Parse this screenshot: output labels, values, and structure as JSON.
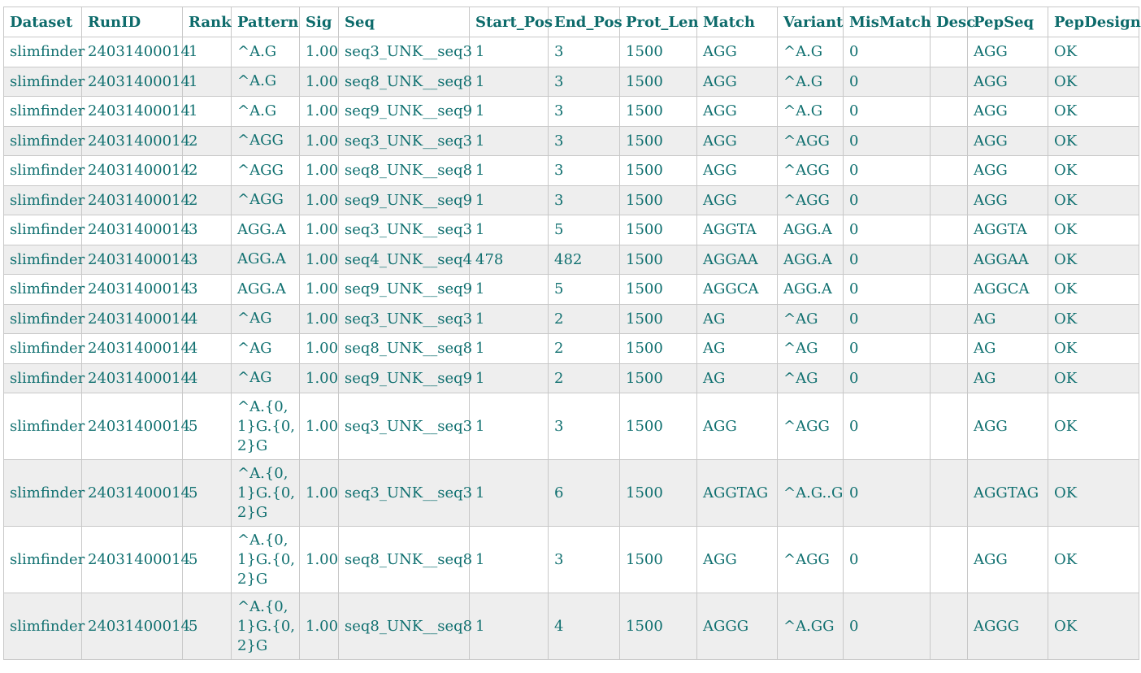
{
  "table": {
    "headers": [
      "Dataset",
      "RunID",
      "Rank",
      "Pattern",
      "Sig",
      "Seq",
      "Start_Pos",
      "End_Pos",
      "Prot_Len",
      "Match",
      "Variant",
      "MisMatch",
      "Desc",
      "PepSeq",
      "PepDesign"
    ],
    "rows": [
      [
        "slimfinder",
        "24031400014",
        "1",
        "^A.G",
        "1.00",
        "seq3_UNK__seq3",
        "1",
        "3",
        "1500",
        "AGG",
        "^A.G",
        "0",
        "",
        "AGG",
        "OK"
      ],
      [
        "slimfinder",
        "24031400014",
        "1",
        "^A.G",
        "1.00",
        "seq8_UNK__seq8",
        "1",
        "3",
        "1500",
        "AGG",
        "^A.G",
        "0",
        "",
        "AGG",
        "OK"
      ],
      [
        "slimfinder",
        "24031400014",
        "1",
        "^A.G",
        "1.00",
        "seq9_UNK__seq9",
        "1",
        "3",
        "1500",
        "AGG",
        "^A.G",
        "0",
        "",
        "AGG",
        "OK"
      ],
      [
        "slimfinder",
        "24031400014",
        "2",
        "^AGG",
        "1.00",
        "seq3_UNK__seq3",
        "1",
        "3",
        "1500",
        "AGG",
        "^AGG",
        "0",
        "",
        "AGG",
        "OK"
      ],
      [
        "slimfinder",
        "24031400014",
        "2",
        "^AGG",
        "1.00",
        "seq8_UNK__seq8",
        "1",
        "3",
        "1500",
        "AGG",
        "^AGG",
        "0",
        "",
        "AGG",
        "OK"
      ],
      [
        "slimfinder",
        "24031400014",
        "2",
        "^AGG",
        "1.00",
        "seq9_UNK__seq9",
        "1",
        "3",
        "1500",
        "AGG",
        "^AGG",
        "0",
        "",
        "AGG",
        "OK"
      ],
      [
        "slimfinder",
        "24031400014",
        "3",
        "AGG.A",
        "1.00",
        "seq3_UNK__seq3",
        "1",
        "5",
        "1500",
        "AGGTA",
        "AGG.A",
        "0",
        "",
        "AGGTA",
        "OK"
      ],
      [
        "slimfinder",
        "24031400014",
        "3",
        "AGG.A",
        "1.00",
        "seq4_UNK__seq4",
        "478",
        "482",
        "1500",
        "AGGAA",
        "AGG.A",
        "0",
        "",
        "AGGAA",
        "OK"
      ],
      [
        "slimfinder",
        "24031400014",
        "3",
        "AGG.A",
        "1.00",
        "seq9_UNK__seq9",
        "1",
        "5",
        "1500",
        "AGGCA",
        "AGG.A",
        "0",
        "",
        "AGGCA",
        "OK"
      ],
      [
        "slimfinder",
        "24031400014",
        "4",
        "^AG",
        "1.00",
        "seq3_UNK__seq3",
        "1",
        "2",
        "1500",
        "AG",
        "^AG",
        "0",
        "",
        "AG",
        "OK"
      ],
      [
        "slimfinder",
        "24031400014",
        "4",
        "^AG",
        "1.00",
        "seq8_UNK__seq8",
        "1",
        "2",
        "1500",
        "AG",
        "^AG",
        "0",
        "",
        "AG",
        "OK"
      ],
      [
        "slimfinder",
        "24031400014",
        "4",
        "^AG",
        "1.00",
        "seq9_UNK__seq9",
        "1",
        "2",
        "1500",
        "AG",
        "^AG",
        "0",
        "",
        "AG",
        "OK"
      ],
      [
        "slimfinder",
        "24031400014",
        "5",
        "^A.{0,1}G.{0,2}G",
        "1.00",
        "seq3_UNK__seq3",
        "1",
        "3",
        "1500",
        "AGG",
        "^AGG",
        "0",
        "",
        "AGG",
        "OK"
      ],
      [
        "slimfinder",
        "24031400014",
        "5",
        "^A.{0,1}G.{0,2}G",
        "1.00",
        "seq3_UNK__seq3",
        "1",
        "6",
        "1500",
        "AGGTAG",
        "^A.G..G",
        "0",
        "",
        "AGGTAG",
        "OK"
      ],
      [
        "slimfinder",
        "24031400014",
        "5",
        "^A.{0,1}G.{0,2}G",
        "1.00",
        "seq8_UNK__seq8",
        "1",
        "3",
        "1500",
        "AGG",
        "^AGG",
        "0",
        "",
        "AGG",
        "OK"
      ],
      [
        "slimfinder",
        "24031400014",
        "5",
        "^A.{0,1}G.{0,2}G",
        "1.00",
        "seq8_UNK__seq8",
        "1",
        "4",
        "1500",
        "AGGG",
        "^A.GG",
        "0",
        "",
        "AGGG",
        "OK"
      ]
    ]
  }
}
